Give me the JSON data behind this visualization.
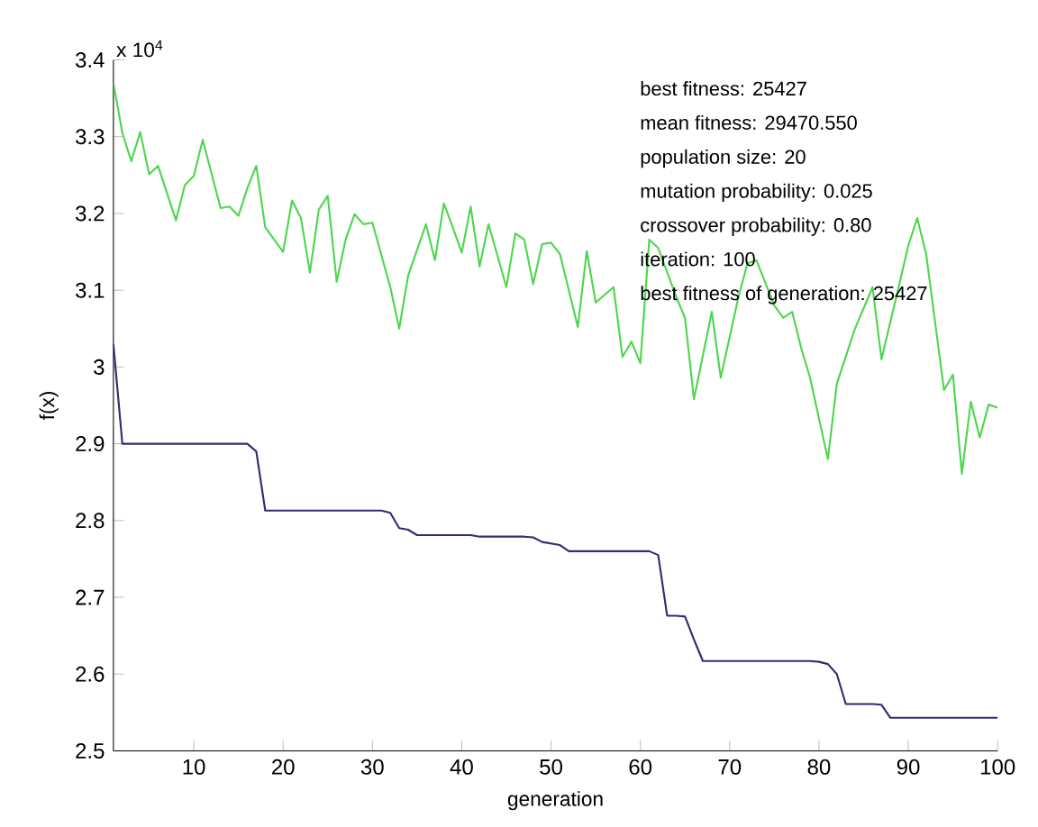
{
  "chart_data": {
    "type": "line",
    "xlabel": "generation",
    "ylabel": "f(x)",
    "annotations": [
      "x 10$^{4}$",
      "best fitness: 25427",
      "mean fitness: 29470.550",
      "population size:  20",
      "mutation probability: 0.025",
      "crossover probability: 0.80",
      "iteration: 100",
      "best fitness of generation: 25427"
    ],
    "xlim": [
      1,
      100
    ],
    "xticks": [
      10,
      20,
      30,
      40,
      50,
      60,
      70,
      80,
      90,
      100
    ],
    "ylim": [
      2.5,
      3.4
    ],
    "yticks": [
      2.5,
      2.6,
      2.7,
      2.8,
      2.9,
      3,
      3.1,
      3.2,
      3.3,
      3.4
    ],
    "grid": false,
    "marker": "none",
    "line_style": "solid",
    "series": [
      {
        "color": "#4fd64f",
        "x": [
          1,
          2,
          3,
          4,
          5,
          6,
          8,
          9,
          10,
          11,
          13,
          14,
          15,
          16,
          17,
          18,
          20,
          21,
          22,
          23,
          24,
          25,
          26,
          27,
          28,
          29,
          30,
          32,
          33,
          34,
          36,
          37,
          38,
          39,
          40,
          41,
          42,
          43,
          45,
          46,
          47,
          48,
          49,
          50,
          51,
          53,
          54,
          55,
          57,
          58,
          59,
          60,
          61,
          62,
          64,
          65,
          66,
          68,
          69,
          71,
          72,
          73,
          75,
          76,
          77,
          78,
          79,
          81,
          82,
          84,
          86,
          87,
          89,
          90,
          91,
          92,
          94,
          95,
          96,
          97,
          98,
          99,
          100
        ],
        "values": [
          3.37,
          3.305,
          3.268,
          3.306,
          3.251,
          3.262,
          3.191,
          3.237,
          3.249,
          3.296,
          3.207,
          3.209,
          3.197,
          3.233,
          3.262,
          3.182,
          3.15,
          3.217,
          3.194,
          3.123,
          3.205,
          3.223,
          3.111,
          3.166,
          3.199,
          3.186,
          3.188,
          3.104,
          3.05,
          3.119,
          3.186,
          3.139,
          3.213,
          3.182,
          3.149,
          3.209,
          3.131,
          3.186,
          3.104,
          3.174,
          3.166,
          3.108,
          3.16,
          3.162,
          3.147,
          3.052,
          3.151,
          3.084,
          3.104,
          3.013,
          3.033,
          3.005,
          3.166,
          3.155,
          3.092,
          3.064,
          2.958,
          3.072,
          2.986,
          3.092,
          3.135,
          3.139,
          3.08,
          3.064,
          3.072,
          3.025,
          2.986,
          2.88,
          2.978,
          3.049,
          3.104,
          3.01,
          3.108,
          3.158,
          3.194,
          3.147,
          2.97,
          2.99,
          2.861,
          2.955,
          2.908,
          2.951,
          2.947
        ]
      },
      {
        "color": "#2e2e72",
        "x": [
          1,
          2,
          16,
          17,
          18,
          31,
          32,
          33,
          34,
          35,
          41,
          42,
          47,
          48,
          49,
          50,
          51,
          52,
          61,
          62,
          63,
          64,
          65,
          66,
          67,
          79,
          80,
          81,
          82,
          83,
          86,
          87,
          88,
          100
        ],
        "values": [
          3.03,
          2.9,
          2.9,
          2.89,
          2.813,
          2.813,
          2.81,
          2.79,
          2.788,
          2.781,
          2.781,
          2.779,
          2.779,
          2.778,
          2.772,
          2.77,
          2.768,
          2.76,
          2.76,
          2.755,
          2.676,
          2.676,
          2.675,
          2.645,
          2.617,
          2.617,
          2.616,
          2.613,
          2.6,
          2.561,
          2.561,
          2.56,
          2.543,
          2.543
        ]
      }
    ]
  }
}
